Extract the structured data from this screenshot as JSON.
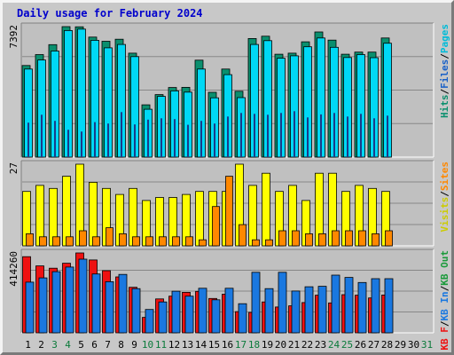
{
  "chart_data": {
    "type": "bar",
    "title": "Daily usage for February 2024",
    "colors": {
      "hits": "#0a8f6e",
      "files": "#00d8f5",
      "pages": "#1860c8",
      "visits": "#ffff00",
      "sites": "#ff8800",
      "kbin": "#1a78e0",
      "kbout": "#1a9a3a",
      "kbf": "#ee1111",
      "weekend": "#0a7a3a"
    },
    "days": [
      "1",
      "2",
      "3",
      "4",
      "5",
      "6",
      "7",
      "8",
      "9",
      "10",
      "11",
      "12",
      "13",
      "14",
      "15",
      "16",
      "17",
      "18",
      "19",
      "20",
      "21",
      "22",
      "23",
      "24",
      "25",
      "26",
      "27",
      "28",
      "29",
      "30",
      "31"
    ],
    "weekend_days": [
      "3",
      "4",
      "10",
      "11",
      "17",
      "18",
      "24",
      "25",
      "31"
    ],
    "panels": [
      {
        "name": "hits-files-pages",
        "max_label": "7392",
        "ymax": 7392,
        "side_labels": [
          {
            "text": "Hits",
            "color": "#0a8f6e"
          },
          {
            "text": "/",
            "color": "#000000"
          },
          {
            "text": "Files",
            "color": "#1860c8"
          },
          {
            "text": "/",
            "color": "#000000"
          },
          {
            "text": "Pages",
            "color": "#00bbd8"
          }
        ],
        "series": [
          {
            "key": "hits",
            "values": [
              5190,
              5810,
              6370,
              7392,
              7380,
              6800,
              6560,
              6680,
              5890,
              2960,
              3540,
              3940,
              3950,
              5490,
              3670,
              4990,
              3730,
              6720,
              6850,
              5830,
              5890,
              6530,
              7090,
              6630,
              5830,
              5950,
              5950,
              6750,
              null,
              null,
              null
            ]
          },
          {
            "key": "files",
            "values": [
              4990,
              5500,
              6010,
              7170,
              7250,
              6620,
              6190,
              6380,
              5690,
              2710,
              3440,
              3750,
              3680,
              4990,
              3360,
              4670,
              3370,
              6380,
              6600,
              5600,
              5740,
              6250,
              6750,
              6220,
              5640,
              5810,
              5630,
              6450,
              null,
              null,
              null
            ]
          },
          {
            "key": "pages",
            "values": [
              1950,
              2400,
              2050,
              1550,
              1450,
              1980,
              1900,
              2550,
              1850,
              2120,
              2200,
              2150,
              1830,
              2050,
              1900,
              2300,
              2500,
              2450,
              2400,
              2500,
              2600,
              2250,
              2420,
              2500,
              2300,
              2450,
              2200,
              2350,
              null,
              null,
              null
            ]
          }
        ]
      },
      {
        "name": "visits-sites",
        "max_label": "27",
        "ymax": 27,
        "side_labels": [
          {
            "text": "Visits",
            "color": "#cccc00"
          },
          {
            "text": "/",
            "color": "#000000"
          },
          {
            "text": "Sites",
            "color": "#ff8800"
          }
        ],
        "series": [
          {
            "key": "visits",
            "values": [
              18,
              20,
              19,
              23,
              27,
              21,
              19,
              17,
              19,
              15,
              16,
              16,
              17,
              18,
              18,
              18,
              27,
              20,
              24,
              18,
              20,
              15,
              24,
              24,
              18,
              20,
              19,
              18,
              null,
              null,
              null
            ]
          },
          {
            "key": "sites",
            "values": [
              4,
              3,
              3,
              3,
              5,
              3,
              6,
              4,
              3,
              3,
              3,
              3,
              3,
              2,
              13,
              23,
              7,
              2,
              2,
              5,
              5,
              4,
              4,
              5,
              5,
              5,
              4,
              5,
              null,
              null,
              null
            ]
          }
        ]
      },
      {
        "name": "kbf-kbin-kbout",
        "max_label": "414260",
        "ymax": 414260,
        "side_labels": [
          {
            "text": "KB F",
            "color": "#ee1111"
          },
          {
            "text": "/",
            "color": "#000000"
          },
          {
            "text": "KB In",
            "color": "#1a78e0"
          },
          {
            "text": "/",
            "color": "#000000"
          },
          {
            "text": "KB Out",
            "color": "#1a9a3a"
          }
        ],
        "series": [
          {
            "key": "kbf",
            "values": [
              395000,
              347000,
              335000,
              361000,
              414260,
              378000,
              322000,
              290000,
              236000,
              80000,
              176000,
              190000,
              210000,
              215000,
              178000,
              200000,
              110000,
              106000,
              160000,
              134000,
              140000,
              157000,
              195000,
              155000,
              198000,
              195000,
              181000,
              196000,
              null,
              null,
              null
            ]
          },
          {
            "key": "kbin",
            "values": [
              263000,
              285000,
              317000,
              341000,
              382000,
              305000,
              265000,
              303000,
              229000,
              121000,
              160000,
              216000,
              190000,
              231000,
              171000,
              231000,
              151000,
              314000,
              229000,
              314000,
              217000,
              239000,
              241000,
              299000,
              287000,
              261000,
              281000,
              281000,
              null,
              null,
              null
            ]
          }
        ]
      }
    ]
  }
}
